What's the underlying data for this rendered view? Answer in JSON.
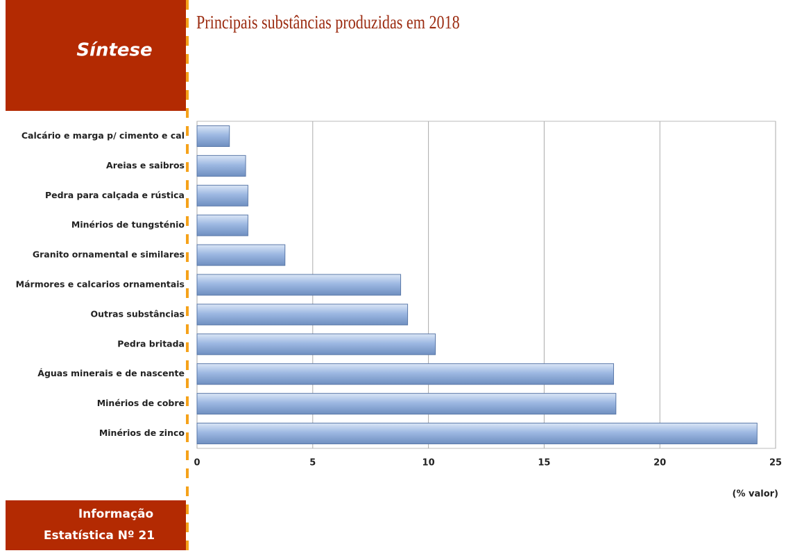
{
  "sidebar": {
    "heading": "Síntese",
    "footer": [
      "Informação",
      "Estatística Nº 21"
    ]
  },
  "chart_data": {
    "type": "bar",
    "orientation": "horizontal",
    "title": "Principais substâncias produzidas em 2018",
    "x_label": "(% valor)",
    "categories": [
      "Calcário e marga p/ cimento e cal",
      "Areias e saibros",
      "Pedra para calçada e rústica",
      "Minérios de tungsténio",
      "Granito ornamental e similares",
      "Mármores e calcarios ornamentais",
      "Outras substâncias",
      "Pedra britada",
      "Águas minerais e de nascente",
      "Minérios de cobre",
      "Minérios de zinco"
    ],
    "values": [
      1.4,
      2.1,
      2.2,
      2.2,
      3.8,
      8.8,
      9.1,
      10.3,
      18.0,
      18.1,
      24.2
    ],
    "color": "#9db8e2",
    "xlim": [
      0,
      25
    ],
    "xticks": [
      0,
      5,
      10,
      15,
      20,
      25
    ],
    "grid": true
  }
}
